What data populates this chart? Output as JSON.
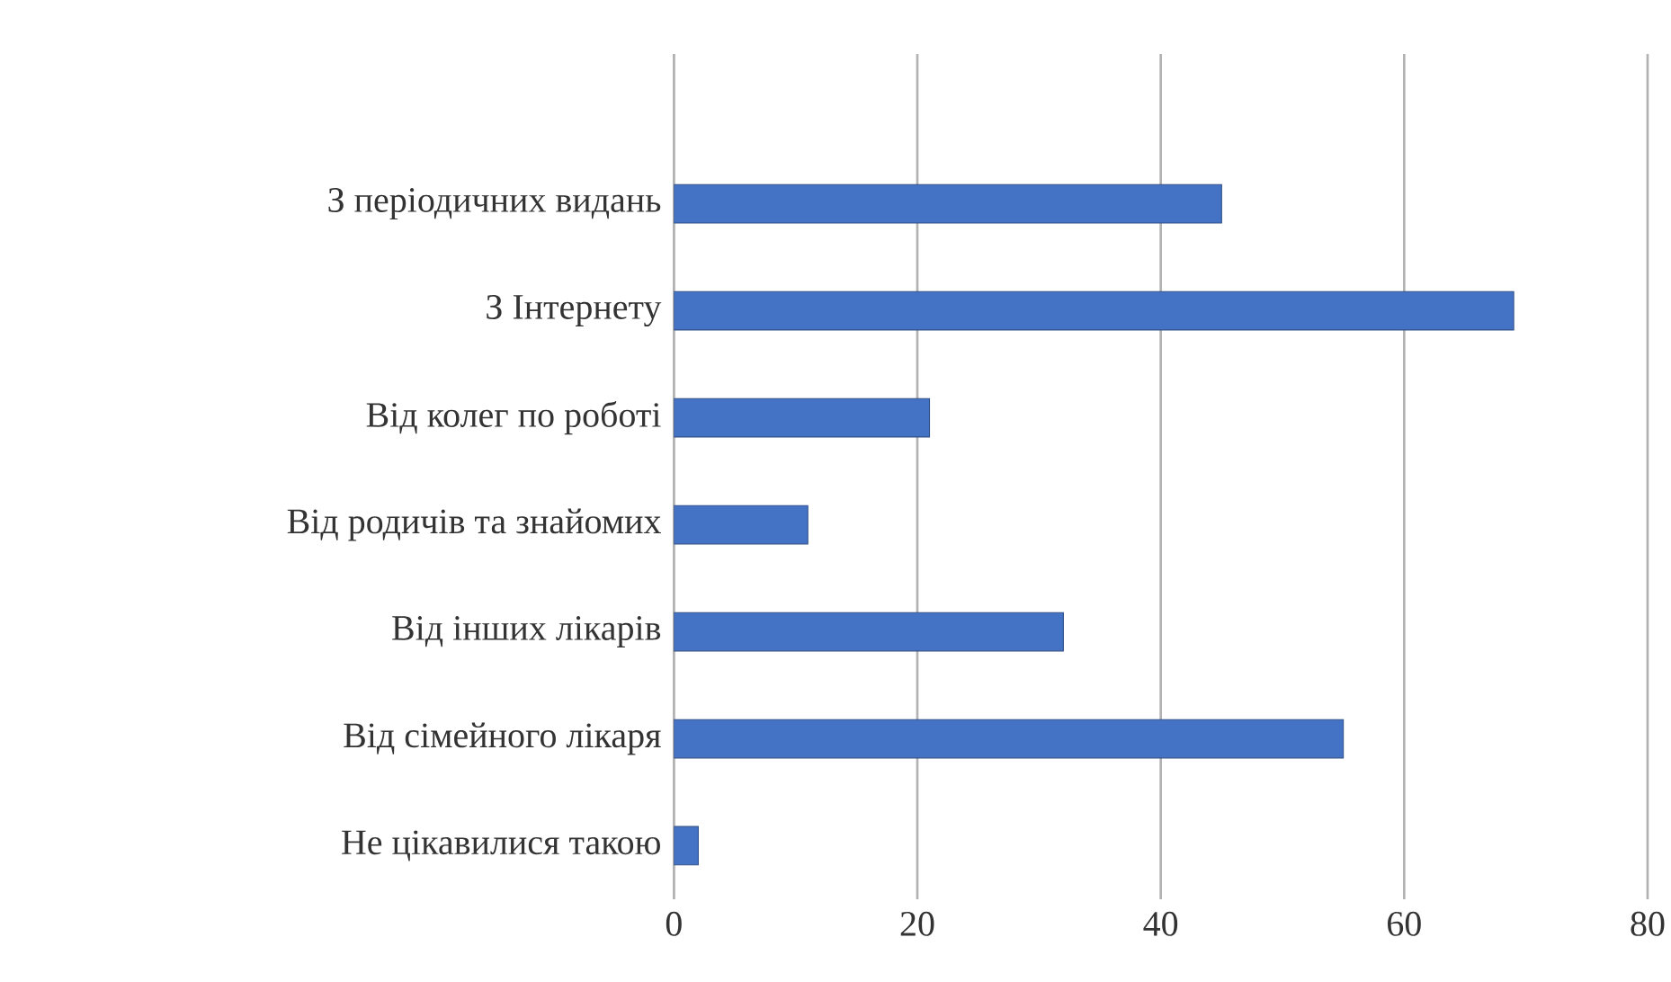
{
  "chart_data": {
    "type": "bar",
    "orientation": "horizontal",
    "categories": [
      "З періодичних видань",
      "З Інтернету",
      "Від колег по роботі",
      "Від родичів та знайомих",
      "Від інших лікарів",
      "Від сімейного лікаря",
      "Не цікавилися такою"
    ],
    "values": [
      45,
      69,
      21,
      11,
      32,
      55,
      2
    ],
    "color": "#4472c4",
    "xlim": [
      0,
      80
    ],
    "xticks": [
      0,
      20,
      40,
      60,
      80
    ],
    "grid": "x"
  }
}
